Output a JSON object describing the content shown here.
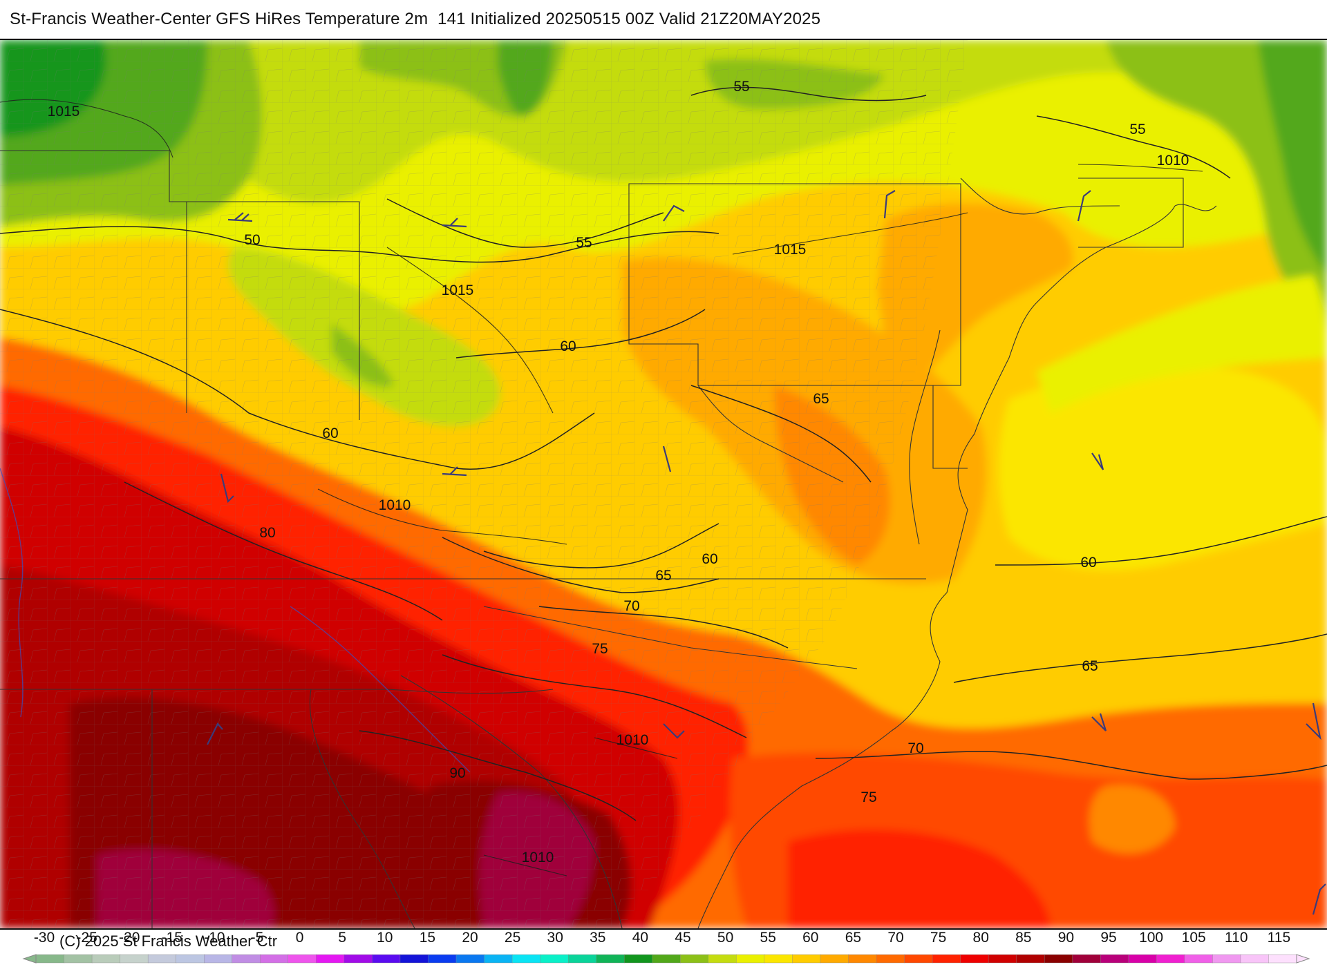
{
  "title": "St-Francis Weather-Center GFS HiRes Temperature 2m  141 Initialized 20250515 00Z Valid 21Z20MAY2025",
  "copyright": "(C) 2025 St Francis Weather Ctr",
  "legend": {
    "ticks": [
      "-30",
      "-25",
      "-20",
      "-15",
      "-10",
      "-5",
      "0",
      "5",
      "10",
      "15",
      "20",
      "25",
      "30",
      "35",
      "40",
      "45",
      "50",
      "55",
      "60",
      "65",
      "70",
      "75",
      "80",
      "85",
      "90",
      "95",
      "100",
      "105",
      "110",
      "115"
    ],
    "colors": [
      "#87b88a",
      "#a3c2a4",
      "#b9ccba",
      "#c6d2cc",
      "#c4cadc",
      "#bcc6e2",
      "#b8b6e6",
      "#c08de4",
      "#d36fe6",
      "#ee55ec",
      "#e418f2",
      "#a10ce8",
      "#5a0cf0",
      "#1414d8",
      "#0a3cf0",
      "#0a78f0",
      "#0ab4f4",
      "#0ae4f4",
      "#0af0c8",
      "#0ad49a",
      "#10b458",
      "#12961e",
      "#52a81a",
      "#8cc018",
      "#c4dc10",
      "#eaf000",
      "#fbe600",
      "#ffcc00",
      "#ffaa00",
      "#ff8800",
      "#ff6a00",
      "#ff4800",
      "#ff2200",
      "#ee0000",
      "#d00000",
      "#b00000",
      "#8a0000",
      "#a0003a",
      "#b8007a",
      "#d800a8",
      "#f020d0",
      "#f060e8",
      "#f098f0",
      "#f8c4f8",
      "#fde0fd"
    ]
  },
  "isotherm_labels": [
    {
      "text": "50"
    },
    {
      "text": "55"
    },
    {
      "text": "55"
    },
    {
      "text": "55"
    },
    {
      "text": "60"
    },
    {
      "text": "60"
    },
    {
      "text": "60"
    },
    {
      "text": "60"
    },
    {
      "text": "65"
    },
    {
      "text": "65"
    },
    {
      "text": "65"
    },
    {
      "text": "70"
    },
    {
      "text": "70"
    },
    {
      "text": "75"
    },
    {
      "text": "75"
    },
    {
      "text": "80"
    },
    {
      "text": "90"
    }
  ],
  "isobar_labels": [
    {
      "text": "1015"
    },
    {
      "text": "1015"
    },
    {
      "text": "1015"
    },
    {
      "text": "1010"
    },
    {
      "text": "1010"
    },
    {
      "text": "1010"
    },
    {
      "text": "1010"
    }
  ]
}
